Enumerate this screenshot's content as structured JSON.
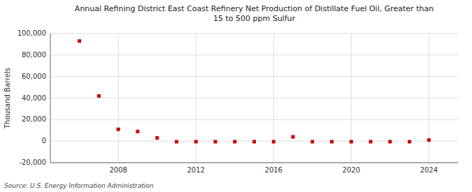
{
  "chart_data": {
    "type": "scatter",
    "title": "Annual Refining District East Coast Refinery Net Production of Distillate Fuel Oil, Greater than\n15 to 500 ppm Sulfur",
    "y_label": "Thousand Barrels",
    "source": "Source: U.S. Energy Information Administration",
    "x": [
      2006,
      2007,
      2008,
      2009,
      2010,
      2011,
      2012,
      2013,
      2014,
      2015,
      2016,
      2017,
      2018,
      2019,
      2020,
      2021,
      2022,
      2023,
      2024
    ],
    "values": [
      93000,
      42000,
      11000,
      9000,
      3000,
      -500,
      -500,
      -500,
      -500,
      -500,
      -500,
      4000,
      -500,
      -500,
      -500,
      -500,
      -500,
      -500,
      1000
    ],
    "color": "#cc0000",
    "marker": "square",
    "grid": true,
    "xlim": [
      2004.5,
      2025.5
    ],
    "xticks": [
      2008,
      2012,
      2016,
      2020,
      2024
    ],
    "ylim": [
      -20000,
      100000
    ],
    "yticks": [
      {
        "value": -20000,
        "label": "-20,000"
      },
      0,
      {
        "value": 20000,
        "label": "20,000"
      },
      {
        "value": 40000,
        "label": "40,000"
      },
      {
        "value": 60000,
        "label": "60,000"
      },
      {
        "value": 80000,
        "label": "80,000"
      },
      {
        "value": 100000,
        "label": "100,000"
      }
    ]
  }
}
